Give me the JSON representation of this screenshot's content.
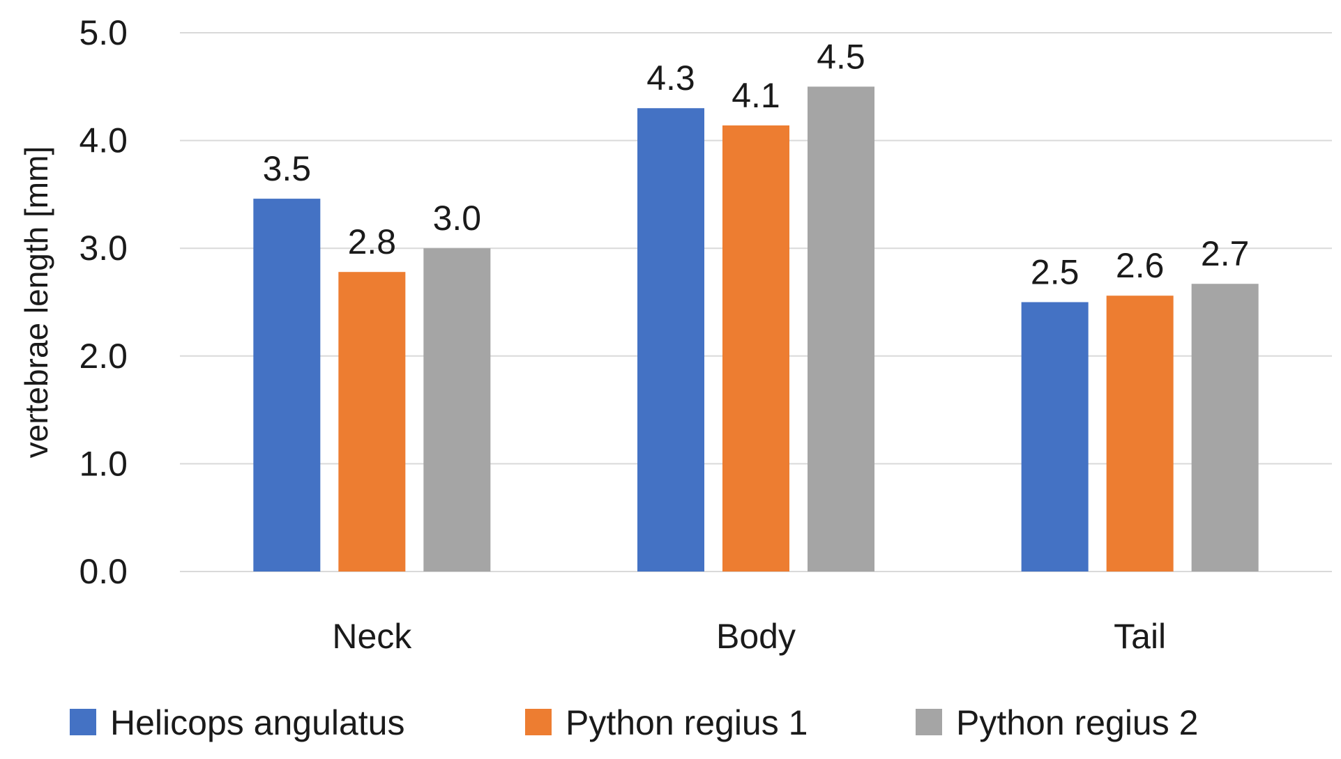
{
  "chart_data": {
    "type": "bar",
    "title": "",
    "xlabel": "",
    "ylabel": "vertebrae length [mm]",
    "ylim": [
      0,
      5
    ],
    "yticks": [
      "0.0",
      "1.0",
      "2.0",
      "3.0",
      "4.0",
      "5.0"
    ],
    "ytick_values": [
      0,
      1,
      2,
      3,
      4,
      5
    ],
    "grid": true,
    "legend_position": "bottom",
    "categories": [
      "Neck",
      "Body",
      "Tail"
    ],
    "series": [
      {
        "name": "Helicops angulatus",
        "color": "#4472C4",
        "values": [
          3.46,
          4.3,
          2.5
        ],
        "labels": [
          "3.5",
          "4.3",
          "2.5"
        ]
      },
      {
        "name": "Python regius 1",
        "color": "#ED7D31",
        "values": [
          2.78,
          4.14,
          2.56
        ],
        "labels": [
          "2.8",
          "4.1",
          "2.6"
        ]
      },
      {
        "name": "Python regius 2",
        "color": "#A5A5A5",
        "values": [
          3.0,
          4.5,
          2.67
        ],
        "labels": [
          "3.0",
          "4.5",
          "2.7"
        ]
      }
    ]
  }
}
